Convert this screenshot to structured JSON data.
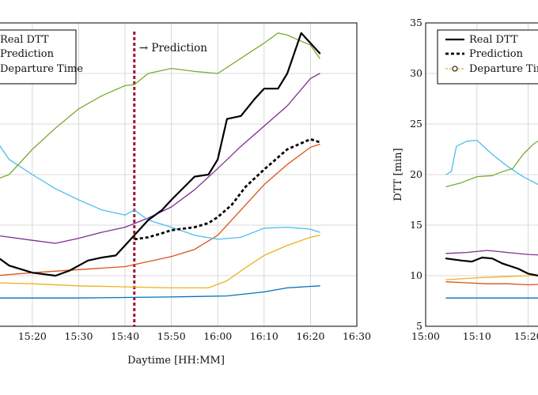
{
  "chart_data": [
    {
      "type": "line",
      "xlabel": "Daytime [HH:MM]",
      "x_ticks": [
        "15:20",
        "15:30",
        "15:40",
        "15:50",
        "16:00",
        "16:10",
        "16:20",
        "16:30"
      ],
      "xlim": [
        "15:12",
        "16:30"
      ],
      "ylim": [
        5,
        35
      ],
      "grid": true,
      "legend": {
        "placement": "top-left",
        "entries": [
          "Real DTT",
          "Prediction",
          "Departure Time"
        ]
      },
      "annotation": "→ Prediction",
      "prediction_start": "15:42",
      "series": [
        {
          "name": "",
          "color": "#0072bd",
          "x": [
            "15:12",
            "15:30",
            "15:50",
            "16:02",
            "16:10",
            "16:15",
            "16:22"
          ],
          "y": [
            7.8,
            7.8,
            7.9,
            8.0,
            8.4,
            8.8,
            9.0
          ]
        },
        {
          "name": "",
          "color": "#edb120",
          "x": [
            "15:12",
            "15:20",
            "15:30",
            "15:40",
            "15:50",
            "15:58",
            "16:02",
            "16:06",
            "16:10",
            "16:15",
            "16:20",
            "16:22"
          ],
          "y": [
            9.3,
            9.2,
            9.0,
            8.9,
            8.8,
            8.8,
            9.5,
            10.8,
            12.0,
            13.0,
            13.8,
            14.0
          ]
        },
        {
          "name": "",
          "color": "#d95319",
          "x": [
            "15:12",
            "15:20",
            "15:30",
            "15:40",
            "15:45",
            "15:50",
            "15:55",
            "16:00",
            "16:05",
            "16:10",
            "16:15",
            "16:20",
            "16:22"
          ],
          "y": [
            10.0,
            10.3,
            10.6,
            10.9,
            11.4,
            11.9,
            12.6,
            14.0,
            16.5,
            19.0,
            21.0,
            22.7,
            23.0
          ]
        },
        {
          "name": "",
          "color": "#7e2f8e",
          "x": [
            "15:12",
            "15:20",
            "15:25",
            "15:30",
            "15:35",
            "15:40",
            "15:45",
            "15:50",
            "15:55",
            "16:00",
            "16:05",
            "16:10",
            "16:15",
            "16:20",
            "16:22"
          ],
          "y": [
            14.0,
            13.5,
            13.2,
            13.7,
            14.3,
            14.8,
            15.7,
            16.8,
            18.5,
            20.6,
            22.8,
            24.8,
            26.8,
            29.5,
            30.0
          ]
        },
        {
          "name": "",
          "color": "#4dbeee",
          "x": [
            "15:12",
            "15:15",
            "15:20",
            "15:25",
            "15:30",
            "15:35",
            "15:40",
            "15:42",
            "15:45",
            "15:50",
            "15:55",
            "16:00",
            "16:05",
            "16:10",
            "16:15",
            "16:20",
            "16:22"
          ],
          "y": [
            23.5,
            21.5,
            20.0,
            18.6,
            17.5,
            16.5,
            16.0,
            16.5,
            15.5,
            14.8,
            14.0,
            13.6,
            13.8,
            14.7,
            14.8,
            14.6,
            14.3
          ]
        },
        {
          "name": "",
          "color": "#77ac30",
          "x": [
            "15:12",
            "15:15",
            "15:20",
            "15:25",
            "15:30",
            "15:35",
            "15:40",
            "15:42",
            "15:45",
            "15:50",
            "15:55",
            "16:00",
            "16:05",
            "16:10",
            "16:13",
            "16:15",
            "16:20",
            "16:22"
          ],
          "y": [
            19.5,
            20.0,
            22.5,
            24.6,
            26.5,
            27.8,
            28.8,
            28.9,
            30.0,
            30.5,
            30.2,
            30.0,
            31.5,
            33.0,
            34.0,
            33.8,
            32.8,
            31.5
          ]
        },
        {
          "name": "Real DTT",
          "color": "#000000",
          "dash": "solid",
          "x": [
            "15:12",
            "15:15",
            "15:20",
            "15:25",
            "15:28",
            "15:32",
            "15:35",
            "15:38",
            "15:40",
            "15:42",
            "15:45",
            "15:48",
            "15:50",
            "15:55",
            "15:58",
            "16:00",
            "16:02",
            "16:05",
            "16:08",
            "16:10",
            "16:13",
            "16:15",
            "16:18",
            "16:20",
            "16:22"
          ],
          "y": [
            12.0,
            11.0,
            10.3,
            10.0,
            10.5,
            11.5,
            11.8,
            12.0,
            13.0,
            14.0,
            15.5,
            16.5,
            17.5,
            19.8,
            20.0,
            21.5,
            25.5,
            25.8,
            27.5,
            28.5,
            28.5,
            30.0,
            34.0,
            33.0,
            32.0
          ]
        },
        {
          "name": "Prediction",
          "color": "#000000",
          "dash": "dashed",
          "x": [
            "15:42",
            "15:45",
            "15:48",
            "15:50",
            "15:55",
            "15:58",
            "16:00",
            "16:03",
            "16:06",
            "16:10",
            "16:15",
            "16:20",
            "16:22"
          ],
          "y": [
            13.6,
            13.8,
            14.2,
            14.5,
            14.8,
            15.2,
            15.8,
            17.0,
            18.8,
            20.5,
            22.5,
            23.5,
            23.2
          ]
        }
      ]
    },
    {
      "type": "line",
      "ylabel": "DTT [min]",
      "x_ticks": [
        "15:00",
        "15:10",
        "15:20"
      ],
      "xlim": [
        "15:00",
        "15:25"
      ],
      "y_ticks": [
        "5",
        "10",
        "15",
        "20",
        "25",
        "30",
        "35"
      ],
      "ylim": [
        5,
        35
      ],
      "grid": true,
      "legend": {
        "placement": "top-right",
        "entries": [
          "Real DTT",
          "Prediction",
          "Departure Time"
        ]
      },
      "series": [
        {
          "name": "",
          "color": "#0072bd",
          "x": [
            "15:04",
            "15:10",
            "15:15",
            "15:20",
            "15:25"
          ],
          "y": [
            7.8,
            7.8,
            7.8,
            7.8,
            7.8
          ]
        },
        {
          "name": "",
          "color": "#edb120",
          "x": [
            "15:04",
            "15:10",
            "15:15",
            "15:20",
            "15:25"
          ],
          "y": [
            9.6,
            9.8,
            9.9,
            10.0,
            10.1
          ]
        },
        {
          "name": "",
          "color": "#d95319",
          "x": [
            "15:04",
            "15:08",
            "15:12",
            "15:16",
            "15:20",
            "15:25"
          ],
          "y": [
            9.4,
            9.3,
            9.2,
            9.2,
            9.1,
            9.2
          ]
        },
        {
          "name": "",
          "color": "#7e2f8e",
          "x": [
            "15:04",
            "15:08",
            "15:12",
            "15:16",
            "15:20",
            "15:25"
          ],
          "y": [
            12.2,
            12.3,
            12.5,
            12.3,
            12.1,
            12.0
          ]
        },
        {
          "name": "",
          "color": "#4dbeee",
          "x": [
            "15:04",
            "15:05",
            "15:06",
            "15:08",
            "15:10",
            "15:13",
            "15:16",
            "15:19",
            "15:22",
            "15:25"
          ],
          "y": [
            20.0,
            20.3,
            22.8,
            23.3,
            23.4,
            22.0,
            20.8,
            19.8,
            19.0,
            18.6
          ]
        },
        {
          "name": "",
          "color": "#77ac30",
          "x": [
            "15:04",
            "15:07",
            "15:10",
            "15:13",
            "15:15",
            "15:17",
            "15:19",
            "15:21",
            "15:23",
            "15:25"
          ],
          "y": [
            18.8,
            19.2,
            19.8,
            19.9,
            20.3,
            20.6,
            22.0,
            23.0,
            23.7,
            24.0
          ]
        },
        {
          "name": "Real DTT",
          "color": "#000000",
          "dash": "solid",
          "x": [
            "15:04",
            "15:07",
            "15:09",
            "15:11",
            "15:13",
            "15:15",
            "15:18",
            "15:20",
            "15:22",
            "15:25"
          ],
          "y": [
            11.7,
            11.5,
            11.4,
            11.8,
            11.7,
            11.2,
            10.7,
            10.2,
            10.0,
            10.1
          ]
        }
      ]
    }
  ]
}
